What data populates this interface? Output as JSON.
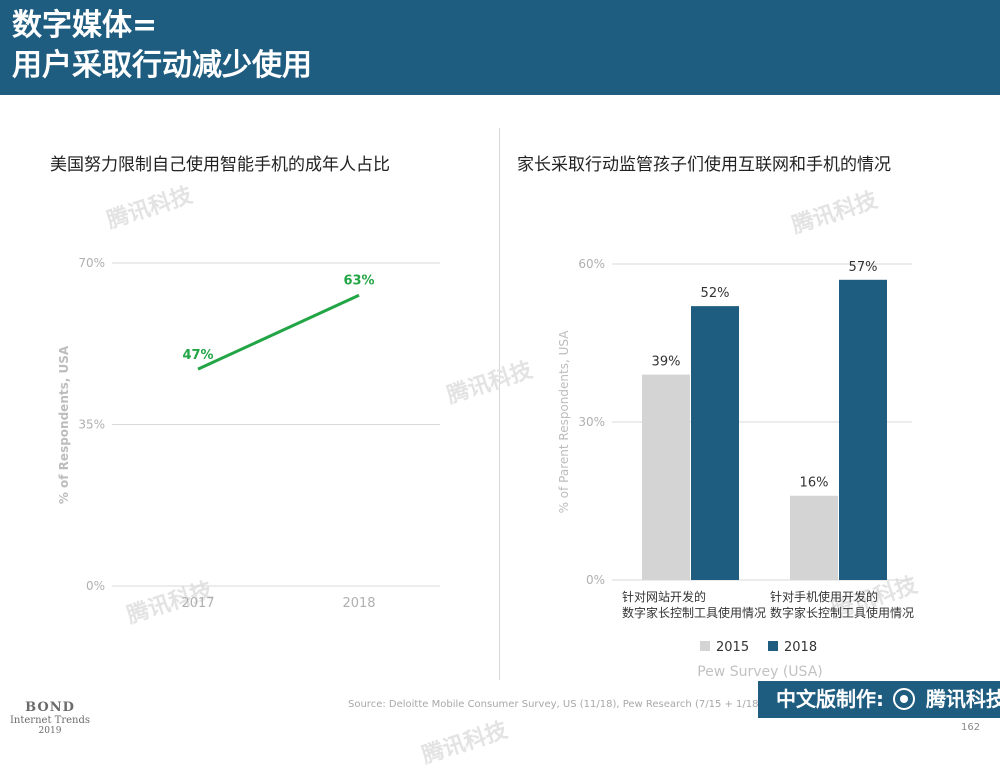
{
  "header": {
    "line1": "数字媒体=",
    "line2": "用户采取行动减少使用"
  },
  "left_chart_title": "美国努力限制自己使用智能手机的成年人占比",
  "right_chart_title": "家长采取行动监管孩子们使用互联网和手机的情况",
  "chart_data": [
    {
      "type": "line",
      "title": "美国努力限制自己使用智能手机的成年人占比",
      "ylabel": "% of Respondents, USA",
      "xlabel": "",
      "x": [
        "2017",
        "2018"
      ],
      "series": [
        {
          "values": [
            47,
            63
          ],
          "labels": [
            "47%",
            "63%"
          ],
          "color": "#22a545"
        }
      ],
      "ylim": [
        0,
        70
      ],
      "yticks": [
        0,
        35,
        70
      ],
      "ytick_labels": [
        "0%",
        "35%",
        "70%"
      ],
      "grid": true
    },
    {
      "type": "bar",
      "title": "家长采取行动监管孩子们使用互联网和手机的情况",
      "ylabel": "% of Parent Respondents, USA",
      "xlabel": "Pew Survey (USA)",
      "categories": [
        [
          "针对网站开发的",
          "数字家长控制工具使用情况"
        ],
        [
          "针对手机使用开发的",
          "数字家长控制工具使用情况"
        ]
      ],
      "series": [
        {
          "name": "2015",
          "values": [
            39,
            16
          ],
          "labels": [
            "39%",
            "16%"
          ],
          "color": "#d4d4d4"
        },
        {
          "name": "2018",
          "values": [
            52,
            57
          ],
          "labels": [
            "52%",
            "57%"
          ],
          "color": "#1f5d80"
        }
      ],
      "ylim": [
        0,
        60
      ],
      "yticks": [
        0,
        30,
        60
      ],
      "ytick_labels": [
        "0%",
        "30%",
        "60%"
      ],
      "grid": true,
      "legend": "bottom"
    }
  ],
  "footer": {
    "brand": "BOND",
    "sub1": "Internet Trends",
    "sub2": "2019",
    "source": "Source: Deloitte Mobile Consumer Survey, US (11/18), Pew Research (7/15 + 1/18)",
    "badge": "中文版制作:",
    "badge_brand": "腾讯科技",
    "page": "162"
  },
  "watermark": "腾讯科技"
}
